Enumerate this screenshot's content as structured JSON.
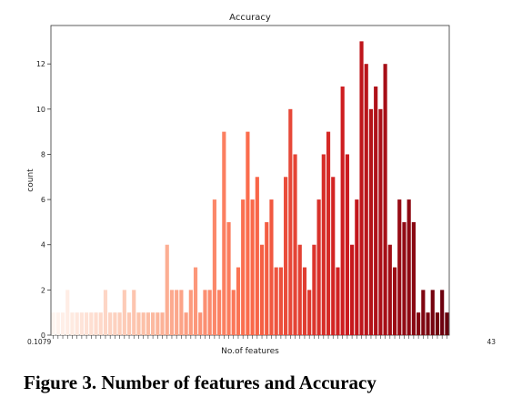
{
  "chart_data": {
    "type": "bar",
    "title": "Accuracy",
    "xlabel": "No.of features",
    "ylabel": "count",
    "ylim": [
      0,
      13.7
    ],
    "yticks": [
      0,
      2,
      4,
      6,
      8,
      10,
      12
    ],
    "x_first_label": "0.1079",
    "x_last_label": "43",
    "colormap": "Reds",
    "values": [
      1,
      1,
      1,
      2,
      1,
      1,
      1,
      1,
      1,
      1,
      1,
      2,
      1,
      1,
      1,
      2,
      1,
      2,
      1,
      1,
      1,
      1,
      1,
      1,
      4,
      2,
      2,
      2,
      1,
      2,
      3,
      1,
      2,
      2,
      6,
      2,
      9,
      5,
      2,
      3,
      6,
      9,
      6,
      7,
      4,
      5,
      6,
      3,
      3,
      7,
      10,
      8,
      4,
      3,
      2,
      4,
      6,
      8,
      9,
      7,
      3,
      11,
      8,
      4,
      6,
      13,
      12,
      10,
      11,
      10,
      12,
      4,
      3,
      6,
      5,
      6,
      5,
      1,
      2,
      1,
      2,
      1,
      2,
      1
    ]
  },
  "caption": "Figure 3. Number of features and Accuracy"
}
